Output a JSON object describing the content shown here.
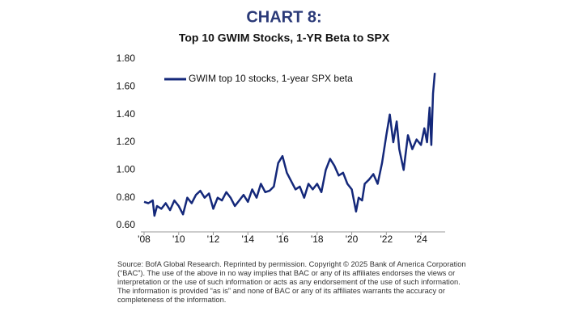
{
  "chart_data": {
    "type": "line",
    "title": "CHART 8:",
    "subtitle": "Top 10 GWIM Stocks, 1-YR Beta to SPX",
    "x": [
      2008.0,
      2008.25,
      2008.5,
      2008.6,
      2008.75,
      2009.0,
      2009.25,
      2009.5,
      2009.75,
      2010.0,
      2010.25,
      2010.5,
      2010.75,
      2011.0,
      2011.25,
      2011.5,
      2011.75,
      2012.0,
      2012.25,
      2012.5,
      2012.75,
      2013.0,
      2013.25,
      2013.5,
      2013.75,
      2014.0,
      2014.25,
      2014.5,
      2014.75,
      2015.0,
      2015.25,
      2015.5,
      2015.75,
      2016.0,
      2016.25,
      2016.5,
      2016.75,
      2017.0,
      2017.25,
      2017.5,
      2017.75,
      2018.0,
      2018.25,
      2018.5,
      2018.75,
      2019.0,
      2019.25,
      2019.5,
      2019.75,
      2020.0,
      2020.25,
      2020.4,
      2020.6,
      2020.75,
      2021.0,
      2021.25,
      2021.5,
      2021.75,
      2022.0,
      2022.2,
      2022.4,
      2022.6,
      2022.75,
      2023.0,
      2023.25,
      2023.5,
      2023.75,
      2024.0,
      2024.2,
      2024.35,
      2024.5,
      2024.6,
      2024.7,
      2024.8
    ],
    "series": [
      {
        "name": "GWIM top 10 stocks, 1-year SPX beta",
        "color": "#14287a",
        "values": [
          0.77,
          0.76,
          0.78,
          0.67,
          0.74,
          0.72,
          0.76,
          0.71,
          0.78,
          0.74,
          0.68,
          0.8,
          0.76,
          0.82,
          0.85,
          0.8,
          0.83,
          0.72,
          0.8,
          0.78,
          0.84,
          0.8,
          0.74,
          0.78,
          0.82,
          0.77,
          0.86,
          0.8,
          0.9,
          0.84,
          0.85,
          0.88,
          1.05,
          1.1,
          0.98,
          0.92,
          0.86,
          0.88,
          0.8,
          0.9,
          0.86,
          0.9,
          0.84,
          1.0,
          1.08,
          1.03,
          0.96,
          0.98,
          0.9,
          0.86,
          0.7,
          0.8,
          0.78,
          0.9,
          0.93,
          0.97,
          0.9,
          1.05,
          1.25,
          1.4,
          1.2,
          1.35,
          1.15,
          1.0,
          1.25,
          1.15,
          1.22,
          1.18,
          1.3,
          1.2,
          1.45,
          1.18,
          1.55,
          1.7
        ]
      }
    ],
    "xlim": [
      2008,
      2025.4
    ],
    "xticks": [
      {
        "value": 2008,
        "label": "'08"
      },
      {
        "value": 2010,
        "label": "'10"
      },
      {
        "value": 2012,
        "label": "'12"
      },
      {
        "value": 2014,
        "label": "'14"
      },
      {
        "value": 2016,
        "label": "'16"
      },
      {
        "value": 2018,
        "label": "'18"
      },
      {
        "value": 2020,
        "label": "'20"
      },
      {
        "value": 2022,
        "label": "'22"
      },
      {
        "value": 2024,
        "label": "'24"
      }
    ],
    "ylim": [
      0.6,
      1.8
    ],
    "yticks": [
      {
        "value": 0.6,
        "label": "0.60"
      },
      {
        "value": 0.8,
        "label": "0.80"
      },
      {
        "value": 1.0,
        "label": "1.00"
      },
      {
        "value": 1.2,
        "label": "1.20"
      },
      {
        "value": 1.4,
        "label": "1.40"
      },
      {
        "value": 1.6,
        "label": "1.60"
      },
      {
        "value": 1.8,
        "label": "1.80"
      }
    ],
    "grid": false,
    "source": "Source: BofA Global Research. Reprinted by permission. Copyright © 2025 Bank of America Corporation (“BAC”). The use of the above in no way implies that BAC or any of its affiliates endorses the views or interpretation or the use of such information or acts as any endorsement of the use of such information. The information is provided “as is” and none of BAC or any of its affiliates warrants the accuracy or completeness of the information."
  }
}
